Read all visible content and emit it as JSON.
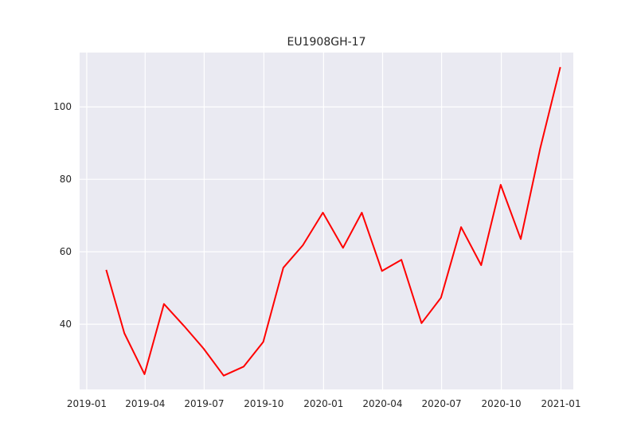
{
  "chart_data": {
    "type": "line",
    "title": "EU1908GH-17",
    "xlabel": "",
    "ylabel": "",
    "grid": true,
    "background": "#eaeaf2",
    "grid_color": "#ffffff",
    "line_color": "#ff0000",
    "x_tick_labels": [
      "2019-01",
      "2019-04",
      "2019-07",
      "2019-10",
      "2020-01",
      "2020-04",
      "2020-07",
      "2020-10",
      "2021-01"
    ],
    "y_tick_labels": [
      "40",
      "60",
      "80",
      "100"
    ],
    "xlim": [
      "2018-12-21",
      "2021-01-20"
    ],
    "ylim": [
      22,
      115
    ],
    "series": [
      {
        "x": [
          "2019-01-31",
          "2019-02-28",
          "2019-03-31",
          "2019-04-30",
          "2019-05-31",
          "2019-06-30",
          "2019-07-31",
          "2019-08-31",
          "2019-09-30",
          "2019-10-31",
          "2019-11-30",
          "2019-12-31",
          "2020-01-31",
          "2020-02-29",
          "2020-03-31",
          "2020-04-30",
          "2020-05-31",
          "2020-06-30",
          "2020-07-31",
          "2020-08-31",
          "2020-09-30",
          "2020-10-31",
          "2020-11-30",
          "2020-12-31"
        ],
        "values": [
          55,
          37.5,
          26.2,
          45.6,
          39.5,
          33.3,
          25.8,
          28.3,
          35.1,
          55.6,
          61.8,
          70.8,
          61.1,
          70.8,
          54.7,
          57.8,
          40.3,
          47.3,
          66.8,
          56.3,
          78.5,
          63.5,
          88.5,
          111
        ]
      }
    ]
  }
}
